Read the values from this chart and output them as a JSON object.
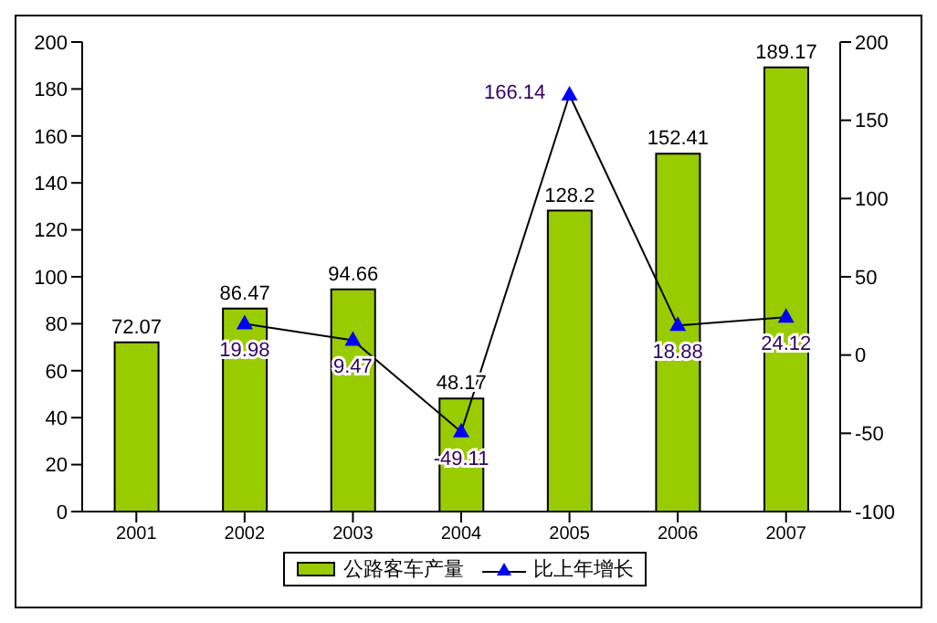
{
  "chart_data": {
    "type": "bar",
    "categories": [
      "2001",
      "2002",
      "2003",
      "2004",
      "2005",
      "2006",
      "2007"
    ],
    "series": [
      {
        "name": "公路客车产量",
        "color": "#99cc00",
        "values": [
          72.07,
          86.47,
          94.66,
          48.17,
          128.2,
          152.41,
          189.17
        ]
      },
      {
        "name": "比上年增长",
        "type": "line",
        "axis": "y2",
        "color": "#0000ff",
        "marker": "triangle",
        "values": [
          null,
          19.98,
          9.47,
          -49.11,
          166.14,
          18.88,
          24.12
        ]
      }
    ],
    "ylim": [
      0,
      200
    ],
    "yticks": [
      0,
      20,
      40,
      60,
      80,
      100,
      120,
      140,
      160,
      180,
      200
    ],
    "y2lim": [
      -100,
      200
    ],
    "y2ticks": [
      -100,
      -50,
      0,
      50,
      100,
      150,
      200
    ],
    "data_labels": true,
    "grid": false,
    "legend": "bottom"
  }
}
